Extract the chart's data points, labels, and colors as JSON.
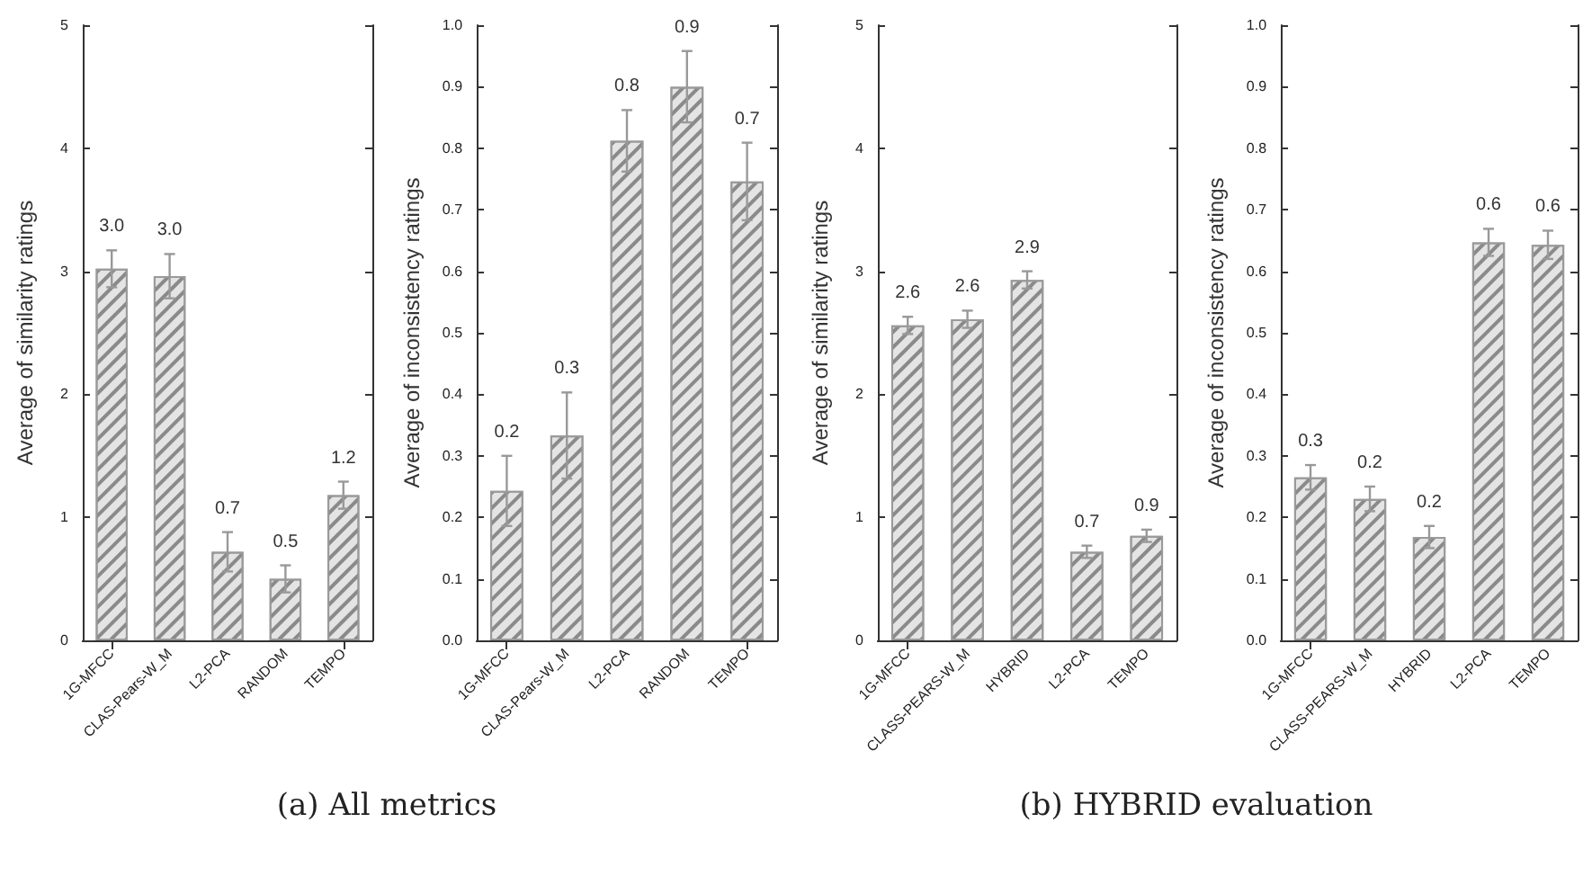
{
  "chart_data": [
    {
      "type": "bar",
      "ylabel": "Average of similarity ratings",
      "categories": [
        "1G-MFCC",
        "CLAS-Pears-W_M",
        "L2-PCA",
        "RANDOM",
        "TEMPO"
      ],
      "values": [
        3.02,
        2.96,
        0.72,
        0.5,
        1.18
      ],
      "errors": [
        0.15,
        0.18,
        0.16,
        0.11,
        0.11
      ],
      "value_labels": [
        "3.0",
        "3.0",
        "0.7",
        "0.5",
        "1.2"
      ],
      "color": "#e4e4e4",
      "ylim": [
        0,
        5
      ],
      "yticks": [
        0,
        1,
        2,
        3,
        4,
        5
      ],
      "annotations": [
        "(a) All metrics"
      ]
    },
    {
      "type": "bar",
      "ylabel": "Average of inconsistency ratings",
      "categories": [
        "1G-MFCC",
        "CLAS-Pears-W_M",
        "L2-PCA",
        "RANDOM",
        "TEMPO"
      ],
      "values": [
        0.243,
        0.333,
        0.812,
        0.9,
        0.746
      ],
      "errors": [
        0.057,
        0.07,
        0.05,
        0.058,
        0.063
      ],
      "value_labels": [
        "0.2",
        "0.3",
        "0.8",
        "0.9",
        "0.7"
      ],
      "color": "#e4e4e4",
      "ylim": [
        0,
        1
      ],
      "yticks": [
        {
          "value": 0,
          "label": "0.0"
        },
        {
          "value": 0.1,
          "label": "0.1"
        },
        {
          "value": 0.2,
          "label": "0.2"
        },
        {
          "value": 0.3,
          "label": "0.3"
        },
        {
          "value": 0.4,
          "label": "0.4"
        },
        {
          "value": 0.5,
          "label": "0.5"
        },
        {
          "value": 0.6,
          "label": "0.6"
        },
        {
          "value": 0.7,
          "label": "0.7"
        },
        {
          "value": 0.8,
          "label": "0.8"
        },
        {
          "value": 0.9,
          "label": "0.9"
        },
        {
          "value": 1,
          "label": "1.0"
        }
      ]
    },
    {
      "type": "bar",
      "ylabel": "Average of similarity ratings",
      "categories": [
        "1G-MFCC",
        "CLASS-PEARS-W_M",
        "HYBRID",
        "L2-PCA",
        "TEMPO"
      ],
      "values": [
        2.56,
        2.61,
        2.93,
        0.72,
        0.85
      ],
      "errors": [
        0.07,
        0.07,
        0.07,
        0.05,
        0.05
      ],
      "value_labels": [
        "2.6",
        "2.6",
        "2.9",
        "0.7",
        "0.9"
      ],
      "color": "#e4e4e4",
      "ylim": [
        0,
        5
      ],
      "yticks": [
        0,
        1,
        2,
        3,
        4,
        5
      ],
      "annotations": [
        "(b) HYBRID evaluation"
      ]
    },
    {
      "type": "bar",
      "ylabel": "Average of inconsistency ratings",
      "categories": [
        "1G-MFCC",
        "CLASS-PEARS-W_M",
        "HYBRID",
        "L2-PCA",
        "TEMPO"
      ],
      "values": [
        0.265,
        0.23,
        0.168,
        0.647,
        0.643
      ],
      "errors": [
        0.02,
        0.02,
        0.018,
        0.022,
        0.023
      ],
      "value_labels": [
        "0.3",
        "0.2",
        "0.2",
        "0.6",
        "0.6"
      ],
      "color": "#e4e4e4",
      "ylim": [
        0,
        1
      ],
      "yticks": [
        {
          "value": 0,
          "label": "0.0"
        },
        {
          "value": 0.1,
          "label": "0.1"
        },
        {
          "value": 0.2,
          "label": "0.2"
        },
        {
          "value": 0.3,
          "label": "0.3"
        },
        {
          "value": 0.4,
          "label": "0.4"
        },
        {
          "value": 0.5,
          "label": "0.5"
        },
        {
          "value": 0.6,
          "label": "0.6"
        },
        {
          "value": 0.7,
          "label": "0.7"
        },
        {
          "value": 0.8,
          "label": "0.8"
        },
        {
          "value": 0.9,
          "label": "0.9"
        },
        {
          "value": 1,
          "label": "1.0"
        }
      ]
    }
  ]
}
